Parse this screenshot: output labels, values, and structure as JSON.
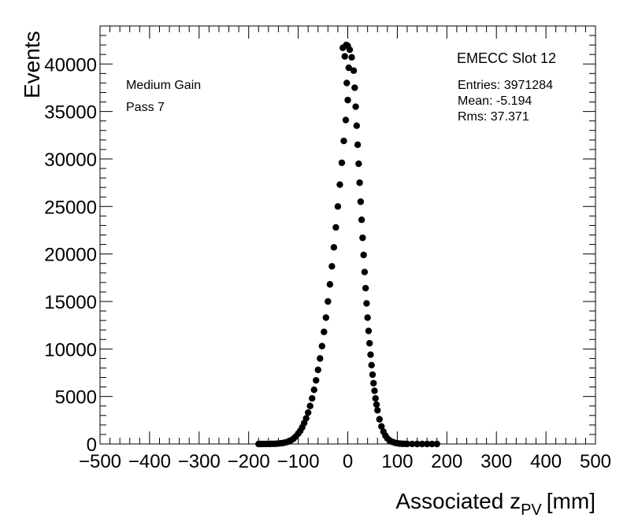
{
  "chart_data": {
    "type": "scatter",
    "title": "EMECC Slot 12",
    "xlabel": {
      "main": "Associated z",
      "sub": "PV",
      "unit": "[mm]"
    },
    "ylabel": "Events",
    "xlim": [
      -500,
      500
    ],
    "ylim": [
      0,
      44000
    ],
    "xticks": [
      {
        "value": -500,
        "label": "−500"
      },
      {
        "value": -400,
        "label": "−400"
      },
      {
        "value": -300,
        "label": "−300"
      },
      {
        "value": -200,
        "label": "−200"
      },
      {
        "value": -100,
        "label": "−100"
      },
      {
        "value": 0,
        "label": "0"
      },
      {
        "value": 100,
        "label": "100"
      },
      {
        "value": 200,
        "label": "200"
      },
      {
        "value": 300,
        "label": "300"
      },
      {
        "value": 400,
        "label": "400"
      },
      {
        "value": 500,
        "label": "500"
      }
    ],
    "yticks": [
      {
        "value": 0,
        "label": "0"
      },
      {
        "value": 5000,
        "label": "5000"
      },
      {
        "value": 10000,
        "label": "10000"
      },
      {
        "value": 15000,
        "label": "15000"
      },
      {
        "value": 20000,
        "label": "20000"
      },
      {
        "value": 25000,
        "label": "25000"
      },
      {
        "value": 30000,
        "label": "30000"
      },
      {
        "value": 35000,
        "label": "35000"
      },
      {
        "value": 40000,
        "label": "40000"
      }
    ],
    "annotations": {
      "left": [
        "Medium Gain",
        "Pass 7"
      ],
      "stats": [
        "Entries: 3971284",
        "Mean: -5.194",
        "Rms: 37.371"
      ]
    },
    "series": [
      {
        "points": [
          [
            -180,
            0
          ],
          [
            -175,
            0
          ],
          [
            -170,
            2
          ],
          [
            -165,
            4
          ],
          [
            -160,
            6
          ],
          [
            -155,
            12
          ],
          [
            -150,
            18
          ],
          [
            -145,
            30
          ],
          [
            -140,
            48
          ],
          [
            -135,
            75
          ],
          [
            -130,
            110
          ],
          [
            -125,
            170
          ],
          [
            -120,
            250
          ],
          [
            -115,
            370
          ],
          [
            -110,
            540
          ],
          [
            -105,
            780
          ],
          [
            -100,
            1100
          ],
          [
            -96,
            1380
          ],
          [
            -92,
            1750
          ],
          [
            -88,
            2200
          ],
          [
            -84,
            2700
          ],
          [
            -80,
            3300
          ],
          [
            -76,
            4000
          ],
          [
            -72,
            4800
          ],
          [
            -68,
            5700
          ],
          [
            -64,
            6700
          ],
          [
            -60,
            7800
          ],
          [
            -56,
            9000
          ],
          [
            -52,
            10300
          ],
          [
            -48,
            11800
          ],
          [
            -44,
            13300
          ],
          [
            -40,
            15000
          ],
          [
            -36,
            16800
          ],
          [
            -32,
            18700
          ],
          [
            -28,
            20700
          ],
          [
            -24,
            22800
          ],
          [
            -20,
            25000
          ],
          [
            -16,
            27300
          ],
          [
            -12,
            29600
          ],
          [
            -8,
            31900
          ],
          [
            -4,
            34100
          ],
          [
            0,
            36200
          ],
          [
            -2,
            38000
          ],
          [
            2,
            39600
          ],
          [
            -6,
            40800
          ],
          [
            -10,
            41700
          ],
          [
            -3,
            42000
          ],
          [
            0,
            41900
          ],
          [
            4,
            41500
          ],
          [
            8,
            40700
          ],
          [
            12,
            39300
          ],
          [
            14,
            37500
          ],
          [
            16,
            35500
          ],
          [
            18,
            33500
          ],
          [
            20,
            31500
          ],
          [
            22,
            29500
          ],
          [
            24,
            27500
          ],
          [
            26,
            25500
          ],
          [
            28,
            23600
          ],
          [
            30,
            21700
          ],
          [
            32,
            19900
          ],
          [
            34,
            18100
          ],
          [
            36,
            16400
          ],
          [
            38,
            14800
          ],
          [
            40,
            13300
          ],
          [
            42,
            11900
          ],
          [
            44,
            10600
          ],
          [
            46,
            9400
          ],
          [
            48,
            8300
          ],
          [
            50,
            7300
          ],
          [
            52,
            6400
          ],
          [
            54,
            5600
          ],
          [
            56,
            4800
          ],
          [
            58,
            4150
          ],
          [
            60,
            3550
          ],
          [
            64,
            2600
          ],
          [
            68,
            1850
          ],
          [
            72,
            1300
          ],
          [
            76,
            880
          ],
          [
            80,
            580
          ],
          [
            85,
            360
          ],
          [
            90,
            220
          ],
          [
            95,
            130
          ],
          [
            100,
            75
          ],
          [
            105,
            42
          ],
          [
            110,
            24
          ],
          [
            115,
            13
          ],
          [
            120,
            7
          ],
          [
            130,
            3
          ],
          [
            140,
            1
          ],
          [
            150,
            0
          ],
          [
            160,
            0
          ],
          [
            170,
            0
          ],
          [
            180,
            0
          ]
        ]
      }
    ]
  }
}
